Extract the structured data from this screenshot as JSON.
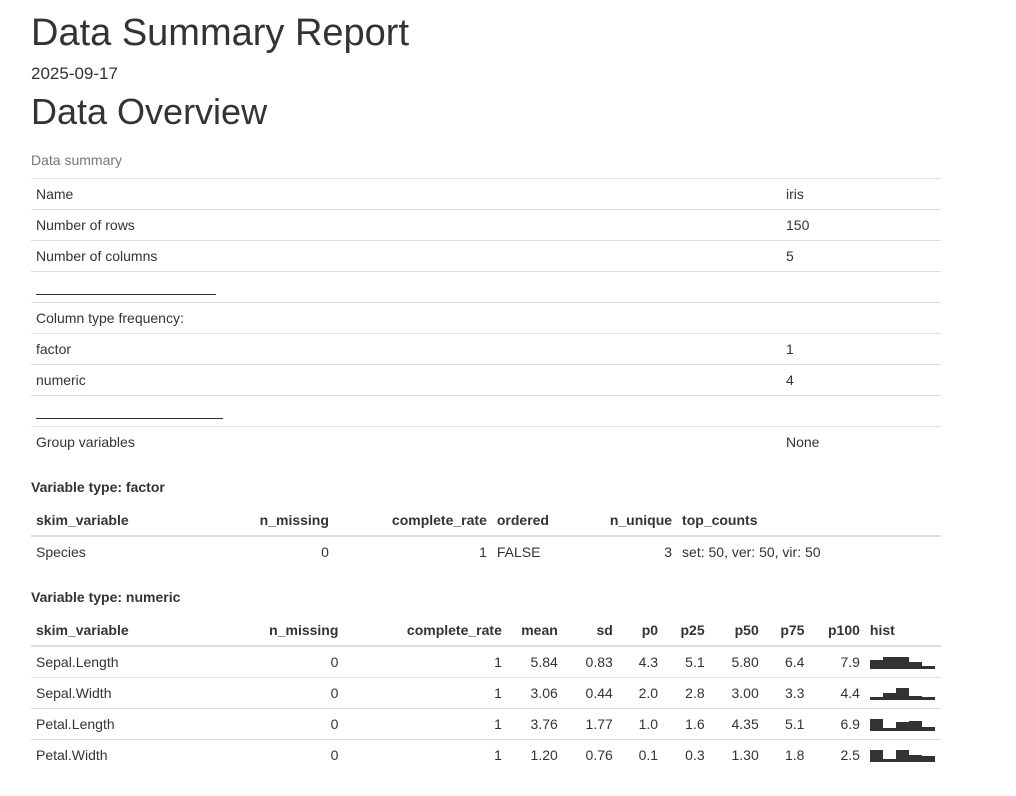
{
  "report": {
    "title": "Data Summary Report",
    "date": "2025-09-17",
    "section_title": "Data Overview"
  },
  "data_summary": {
    "caption": "Data summary",
    "rows": [
      {
        "label": "Name",
        "value": "iris"
      },
      {
        "label": "Number of rows",
        "value": "150"
      },
      {
        "label": "Number of columns",
        "value": "5"
      },
      {
        "label": "",
        "value": "",
        "rule": true
      },
      {
        "label": "Column type frequency:",
        "value": ""
      },
      {
        "label": "factor",
        "value": "1"
      },
      {
        "label": "numeric",
        "value": "4"
      },
      {
        "label": "",
        "value": "",
        "rule": true
      },
      {
        "label": "Group variables",
        "value": "None"
      }
    ]
  },
  "factor_table": {
    "title": "Variable type: factor",
    "headers": [
      "skim_variable",
      "n_missing",
      "complete_rate",
      "ordered",
      "n_unique",
      "top_counts"
    ],
    "rows": [
      [
        "Species",
        "0",
        "1",
        "FALSE",
        "3",
        "set: 50, ver: 50, vir: 50"
      ]
    ]
  },
  "numeric_table": {
    "title": "Variable type: numeric",
    "headers": [
      "skim_variable",
      "n_missing",
      "complete_rate",
      "mean",
      "sd",
      "p0",
      "p25",
      "p50",
      "p75",
      "p100",
      "hist"
    ],
    "rows": [
      {
        "cells": [
          "Sepal.Length",
          "0",
          "1",
          "5.84",
          "0.83",
          "4.3",
          "5.1",
          "5.80",
          "6.4",
          "7.9"
        ],
        "hist": [
          5,
          7,
          7,
          4,
          1
        ]
      },
      {
        "cells": [
          "Sepal.Width",
          "0",
          "1",
          "3.06",
          "0.44",
          "2.0",
          "2.8",
          "3.00",
          "3.3",
          "4.4"
        ],
        "hist": [
          1,
          4,
          7,
          2,
          1
        ]
      },
      {
        "cells": [
          "Petal.Length",
          "0",
          "1",
          "3.76",
          "1.77",
          "1.0",
          "1.6",
          "4.35",
          "5.1",
          "6.9"
        ],
        "hist": [
          7,
          1,
          5,
          6,
          2
        ]
      },
      {
        "cells": [
          "Petal.Width",
          "0",
          "1",
          "1.20",
          "0.76",
          "0.1",
          "0.3",
          "1.30",
          "1.8",
          "2.5"
        ],
        "hist": [
          7,
          1,
          7,
          4,
          3
        ]
      }
    ]
  }
}
